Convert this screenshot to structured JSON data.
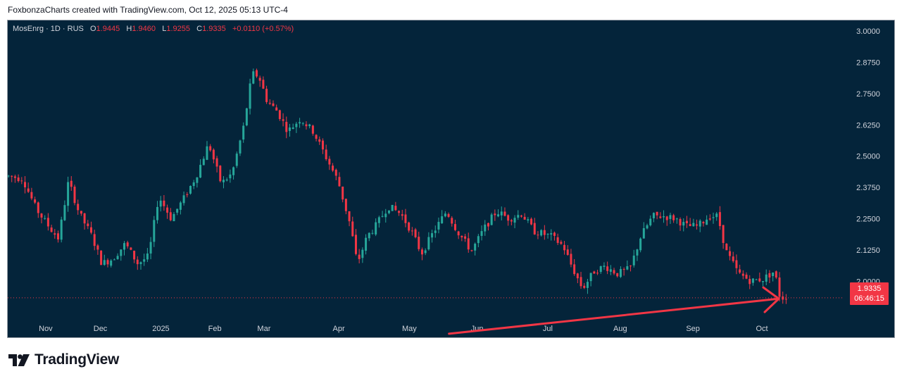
{
  "header": {
    "attribution": "FoxbonzaCharts created with TradingView.com, Oct 12, 2025 05:13 UTC-4"
  },
  "legend": {
    "symbol": "MosEnrg · 1D · RUS",
    "open_label": "O",
    "open": "1.9445",
    "high_label": "H",
    "high": "1.9460",
    "low_label": "L",
    "low": "1.9255",
    "close_label": "C",
    "close": "1.9335",
    "change": "+0.0110 (+0.57%)"
  },
  "price_tag": {
    "price": "1.9335",
    "countdown": "06:46:15"
  },
  "brand": {
    "name": "TradingView"
  },
  "colors": {
    "background": "#04243a",
    "up": "#26a69a",
    "down": "#f23645",
    "axis_text": "#d1d4dc",
    "annotation": "#f23645"
  },
  "chart_data": {
    "type": "candlestick",
    "symbol": "MosEnrg",
    "interval": "1D",
    "y_axis": {
      "min": 1.86,
      "max": 3.02,
      "ticks": [
        "3.0000",
        "2.8750",
        "2.7500",
        "2.6250",
        "2.5000",
        "2.3750",
        "2.2500",
        "2.1250",
        "2.0000"
      ]
    },
    "x_axis": {
      "labels": [
        "Nov",
        "Dec",
        "2025",
        "Feb",
        "Mar",
        "Apr",
        "May",
        "Jun",
        "Jul",
        "Aug",
        "Sep",
        "Oct"
      ],
      "label_positions": [
        0.0455,
        0.111,
        0.1835,
        0.2482,
        0.3071,
        0.3967,
        0.4813,
        0.5626,
        0.6472,
        0.734,
        0.8212,
        0.9038
      ]
    },
    "last_price": 1.9335,
    "close_path": [
      [
        0.0,
        2.42
      ],
      [
        0.017,
        2.41
      ],
      [
        0.033,
        2.29
      ],
      [
        0.048,
        2.22
      ],
      [
        0.06,
        2.17
      ],
      [
        0.072,
        2.4
      ],
      [
        0.085,
        2.27
      ],
      [
        0.1,
        2.18
      ],
      [
        0.112,
        2.07
      ],
      [
        0.125,
        2.09
      ],
      [
        0.14,
        2.15
      ],
      [
        0.155,
        2.07
      ],
      [
        0.168,
        2.1
      ],
      [
        0.18,
        2.34
      ],
      [
        0.195,
        2.25
      ],
      [
        0.21,
        2.33
      ],
      [
        0.225,
        2.42
      ],
      [
        0.24,
        2.55
      ],
      [
        0.255,
        2.39
      ],
      [
        0.268,
        2.43
      ],
      [
        0.282,
        2.62
      ],
      [
        0.292,
        2.83
      ],
      [
        0.3,
        2.82
      ],
      [
        0.31,
        2.72
      ],
      [
        0.322,
        2.68
      ],
      [
        0.335,
        2.6
      ],
      [
        0.35,
        2.65
      ],
      [
        0.365,
        2.6
      ],
      [
        0.38,
        2.5
      ],
      [
        0.395,
        2.4
      ],
      [
        0.41,
        2.22
      ],
      [
        0.418,
        2.07
      ],
      [
        0.43,
        2.18
      ],
      [
        0.44,
        2.22
      ],
      [
        0.455,
        2.3
      ],
      [
        0.47,
        2.27
      ],
      [
        0.483,
        2.2
      ],
      [
        0.495,
        2.11
      ],
      [
        0.51,
        2.2
      ],
      [
        0.525,
        2.28
      ],
      [
        0.538,
        2.2
      ],
      [
        0.555,
        2.12
      ],
      [
        0.57,
        2.21
      ],
      [
        0.585,
        2.28
      ],
      [
        0.6,
        2.25
      ],
      [
        0.615,
        2.27
      ],
      [
        0.63,
        2.2
      ],
      [
        0.65,
        2.18
      ],
      [
        0.665,
        2.14
      ],
      [
        0.675,
        2.06
      ],
      [
        0.688,
        1.97
      ],
      [
        0.702,
        2.04
      ],
      [
        0.715,
        2.06
      ],
      [
        0.73,
        2.03
      ],
      [
        0.745,
        2.05
      ],
      [
        0.758,
        2.18
      ],
      [
        0.772,
        2.26
      ],
      [
        0.785,
        2.26
      ],
      [
        0.8,
        2.25
      ],
      [
        0.812,
        2.22
      ],
      [
        0.826,
        2.22
      ],
      [
        0.84,
        2.26
      ],
      [
        0.85,
        2.26
      ],
      [
        0.86,
        2.12
      ],
      [
        0.875,
        2.03
      ],
      [
        0.89,
        2.0
      ],
      [
        0.905,
        2.01
      ],
      [
        0.918,
        2.04
      ],
      [
        0.925,
        1.93
      ],
      [
        0.932,
        1.94
      ]
    ],
    "annotation": {
      "type": "arrow",
      "color": "#f23645",
      "from": [
        "Jun",
        1.79
      ],
      "to": [
        "Oct",
        1.93
      ]
    }
  }
}
